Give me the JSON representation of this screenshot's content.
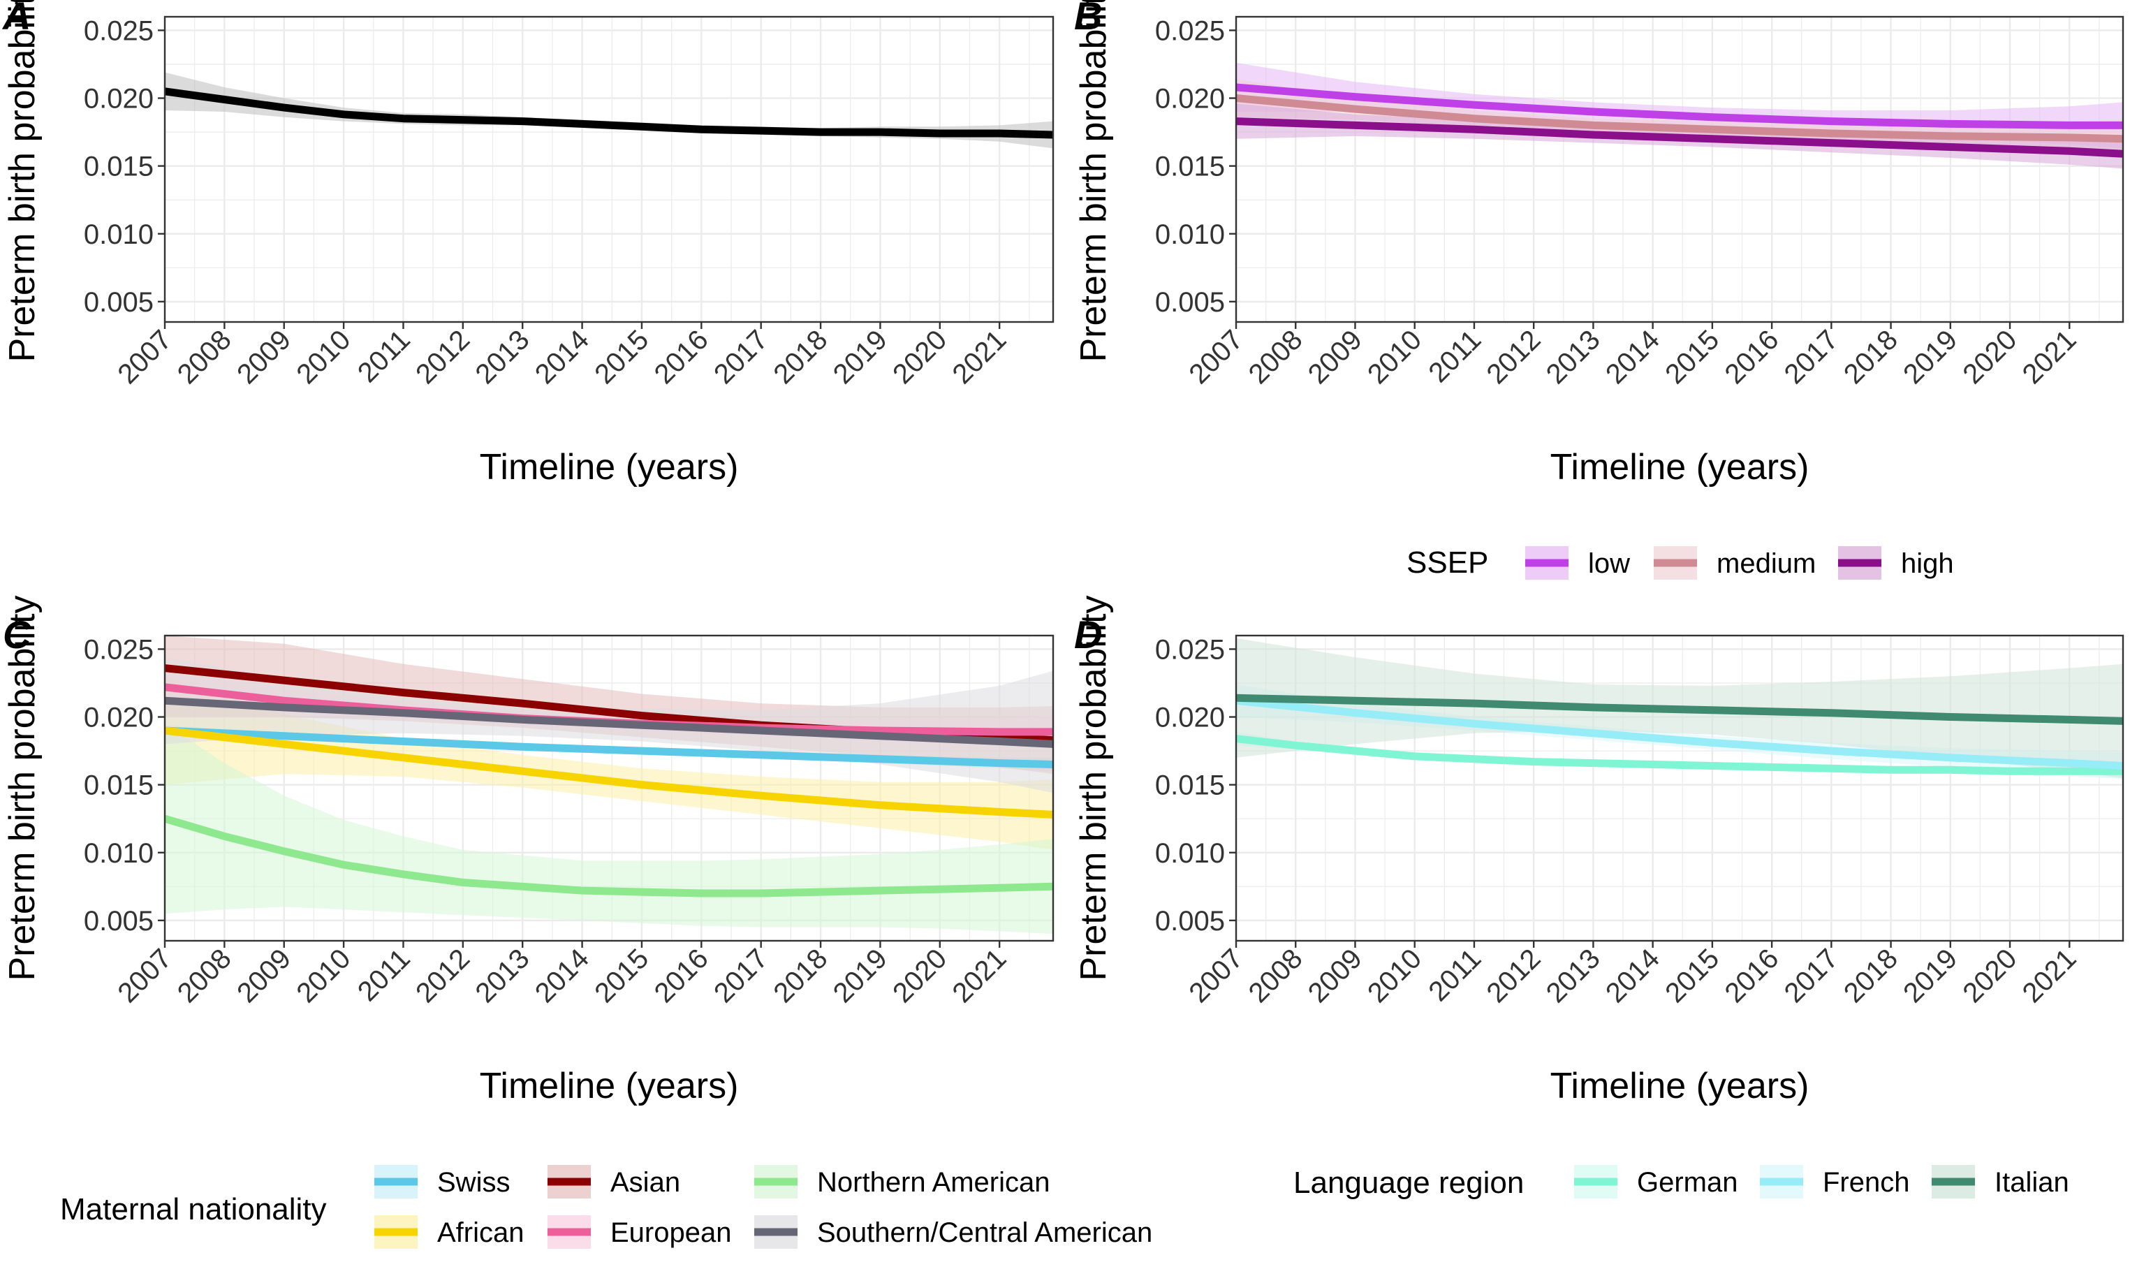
{
  "chart_data": [
    {
      "panel": "A",
      "type": "line",
      "ylabel": "Preterm birth probability",
      "xlabel": "Timeline (years)",
      "xlim": [
        2007,
        2021.9
      ],
      "ylim": [
        0.0035,
        0.026
      ],
      "x_ticks": [
        "2007",
        "2008",
        "2009",
        "2010",
        "2011",
        "2012",
        "2013",
        "2014",
        "2015",
        "2016",
        "2017",
        "2018",
        "2019",
        "2020",
        "2021"
      ],
      "y_ticks": [
        "0.005",
        "0.010",
        "0.015",
        "0.020",
        "0.025"
      ],
      "grid": true,
      "series": [
        {
          "color": "#000000",
          "band": "#bdbdbd",
          "x": [
            2007,
            2008,
            2009,
            2010,
            2011,
            2012,
            2013,
            2014,
            2015,
            2016,
            2017,
            2018,
            2019,
            2020,
            2021,
            2021.9
          ],
          "y": [
            0.0205,
            0.0199,
            0.0193,
            0.0188,
            0.0185,
            0.0184,
            0.0183,
            0.0181,
            0.0179,
            0.0177,
            0.0176,
            0.0175,
            0.0175,
            0.0174,
            0.0174,
            0.0173
          ],
          "lower": [
            0.0191,
            0.019,
            0.0186,
            0.0183,
            0.0181,
            0.018,
            0.018,
            0.0178,
            0.0176,
            0.0174,
            0.0173,
            0.0172,
            0.0171,
            0.017,
            0.0168,
            0.0163
          ],
          "upper": [
            0.0219,
            0.0208,
            0.02,
            0.0193,
            0.0189,
            0.0188,
            0.0186,
            0.0184,
            0.0182,
            0.018,
            0.0179,
            0.0178,
            0.0179,
            0.0179,
            0.018,
            0.0183
          ]
        }
      ]
    },
    {
      "panel": "B",
      "type": "line",
      "ylabel": "Preterm birth probability",
      "xlabel": "Timeline (years)",
      "xlim": [
        2007,
        2021.9
      ],
      "ylim": [
        0.0035,
        0.026
      ],
      "x_ticks": [
        "2007",
        "2008",
        "2009",
        "2010",
        "2011",
        "2012",
        "2013",
        "2014",
        "2015",
        "2016",
        "2017",
        "2018",
        "2019",
        "2020",
        "2021"
      ],
      "y_ticks": [
        "0.005",
        "0.010",
        "0.015",
        "0.020",
        "0.025"
      ],
      "grid": true,
      "legend": {
        "title": "SSEP",
        "placement": "bottom"
      },
      "series": [
        {
          "name": "low",
          "color": "#c040e8",
          "band": "#e6b8f5",
          "x": [
            2007,
            2009,
            2011,
            2013,
            2015,
            2017,
            2019,
            2021,
            2021.9
          ],
          "y": [
            0.0208,
            0.0201,
            0.0195,
            0.019,
            0.0186,
            0.0183,
            0.0181,
            0.018,
            0.018
          ],
          "lower": [
            0.019,
            0.019,
            0.0187,
            0.0183,
            0.0179,
            0.0175,
            0.0171,
            0.0166,
            0.0163
          ],
          "upper": [
            0.0226,
            0.0212,
            0.0203,
            0.0197,
            0.0193,
            0.0191,
            0.0191,
            0.0194,
            0.0197
          ]
        },
        {
          "name": "medium",
          "color": "#d08a94",
          "band": "#efd2d6",
          "x": [
            2007,
            2009,
            2011,
            2013,
            2015,
            2017,
            2019,
            2021,
            2021.9
          ],
          "y": [
            0.02,
            0.0192,
            0.0185,
            0.018,
            0.0177,
            0.0174,
            0.0172,
            0.0171,
            0.017
          ],
          "lower": [
            0.0186,
            0.0184,
            0.0179,
            0.0175,
            0.0171,
            0.0167,
            0.0163,
            0.0159,
            0.0156
          ],
          "upper": [
            0.0214,
            0.02,
            0.0191,
            0.0185,
            0.0183,
            0.0181,
            0.0181,
            0.0183,
            0.0184
          ]
        },
        {
          "name": "high",
          "color": "#8b0f8b",
          "band": "#d9a8d9",
          "x": [
            2007,
            2009,
            2011,
            2013,
            2015,
            2017,
            2019,
            2021,
            2021.9
          ],
          "y": [
            0.0183,
            0.018,
            0.0177,
            0.0173,
            0.017,
            0.0167,
            0.0164,
            0.0161,
            0.0159
          ],
          "lower": [
            0.017,
            0.0172,
            0.017,
            0.0167,
            0.0164,
            0.016,
            0.0156,
            0.0151,
            0.0148
          ],
          "upper": [
            0.0196,
            0.0188,
            0.0184,
            0.0179,
            0.0176,
            0.0174,
            0.0172,
            0.0171,
            0.017
          ]
        }
      ]
    },
    {
      "panel": "C",
      "type": "line",
      "ylabel": "Preterm birth probability",
      "xlabel": "Timeline (years)",
      "xlim": [
        2007,
        2021.9
      ],
      "ylim": [
        0.0035,
        0.026
      ],
      "x_ticks": [
        "2007",
        "2008",
        "2009",
        "2010",
        "2011",
        "2012",
        "2013",
        "2014",
        "2015",
        "2016",
        "2017",
        "2018",
        "2019",
        "2020",
        "2021"
      ],
      "y_ticks": [
        "0.005",
        "0.010",
        "0.015",
        "0.020",
        "0.025"
      ],
      "grid": true,
      "legend": {
        "title": "Maternal nationality",
        "placement": "bottom"
      },
      "series": [
        {
          "name": "Swiss",
          "color": "#5bc8e8",
          "band": "#c9eef8",
          "x": [
            2007,
            2009,
            2011,
            2013,
            2015,
            2017,
            2019,
            2021,
            2021.9
          ],
          "y": [
            0.019,
            0.0186,
            0.0182,
            0.0178,
            0.0175,
            0.0172,
            0.0169,
            0.0166,
            0.0165
          ],
          "lower": [
            0.0186,
            0.0183,
            0.018,
            0.0176,
            0.0173,
            0.017,
            0.0166,
            0.0162,
            0.016
          ],
          "upper": [
            0.0194,
            0.0189,
            0.0184,
            0.018,
            0.0177,
            0.0174,
            0.0172,
            0.017,
            0.017
          ]
        },
        {
          "name": "African",
          "color": "#f7d300",
          "band": "#fbefa6",
          "x": [
            2007,
            2009,
            2011,
            2013,
            2015,
            2017,
            2019,
            2021,
            2021.9
          ],
          "y": [
            0.019,
            0.018,
            0.017,
            0.016,
            0.015,
            0.0142,
            0.0135,
            0.013,
            0.0128
          ],
          "lower": [
            0.015,
            0.0158,
            0.0156,
            0.0148,
            0.0138,
            0.0128,
            0.0118,
            0.0108,
            0.0102
          ],
          "upper": [
            0.023,
            0.0202,
            0.0184,
            0.0172,
            0.0162,
            0.0156,
            0.0152,
            0.0152,
            0.0154
          ]
        },
        {
          "name": "Asian",
          "color": "#8b0000",
          "band": "#e6bcbc",
          "x": [
            2007,
            2009,
            2011,
            2013,
            2015,
            2017,
            2019,
            2021,
            2021.9
          ],
          "y": [
            0.0236,
            0.0227,
            0.0218,
            0.021,
            0.0201,
            0.0194,
            0.0189,
            0.0185,
            0.0183
          ],
          "lower": [
            0.02,
            0.02,
            0.0197,
            0.0192,
            0.0185,
            0.0178,
            0.0171,
            0.0163,
            0.0158
          ],
          "upper": [
            0.026,
            0.0254,
            0.0239,
            0.0228,
            0.0217,
            0.021,
            0.0207,
            0.0207,
            0.0208
          ]
        },
        {
          "name": "European",
          "color": "#ec5f9a",
          "band": "#f9cfe1",
          "x": [
            2007,
            2009,
            2011,
            2013,
            2015,
            2017,
            2019,
            2021,
            2021.9
          ],
          "y": [
            0.0222,
            0.0212,
            0.0205,
            0.0199,
            0.0195,
            0.0192,
            0.019,
            0.0189,
            0.0189
          ],
          "lower": [
            0.021,
            0.0204,
            0.0199,
            0.0194,
            0.019,
            0.0186,
            0.0182,
            0.0179,
            0.0177
          ],
          "upper": [
            0.0234,
            0.022,
            0.0211,
            0.0204,
            0.02,
            0.0198,
            0.0198,
            0.0199,
            0.0201
          ]
        },
        {
          "name": "Northern American",
          "color": "#8ee88e",
          "band": "#d5f5d5",
          "x": [
            2007,
            2008,
            2009,
            2010,
            2011,
            2012,
            2013,
            2014,
            2015,
            2016,
            2017,
            2018,
            2019,
            2020,
            2021,
            2021.9
          ],
          "y": [
            0.0125,
            0.0112,
            0.0101,
            0.0091,
            0.0084,
            0.0078,
            0.0075,
            0.0072,
            0.0071,
            0.007,
            0.007,
            0.0071,
            0.0072,
            0.0073,
            0.0074,
            0.0075
          ],
          "lower": [
            0.0055,
            0.0058,
            0.006,
            0.0058,
            0.0056,
            0.0054,
            0.0052,
            0.005,
            0.0048,
            0.0046,
            0.0045,
            0.0045,
            0.0045,
            0.0044,
            0.0042,
            0.004
          ],
          "upper": [
            0.0195,
            0.0166,
            0.0142,
            0.0124,
            0.0112,
            0.0102,
            0.0098,
            0.0094,
            0.0094,
            0.0094,
            0.0095,
            0.0097,
            0.0099,
            0.0102,
            0.0106,
            0.011
          ]
        },
        {
          "name": "Southern/Central American",
          "color": "#666677",
          "band": "#dddde0",
          "x": [
            2007,
            2009,
            2011,
            2013,
            2015,
            2017,
            2019,
            2021,
            2021.9
          ],
          "y": [
            0.0212,
            0.0207,
            0.0203,
            0.0198,
            0.0194,
            0.019,
            0.0186,
            0.0182,
            0.018
          ],
          "lower": [
            0.018,
            0.0186,
            0.0188,
            0.0186,
            0.0182,
            0.0175,
            0.0165,
            0.0152,
            0.0144
          ],
          "upper": [
            0.0244,
            0.0228,
            0.0218,
            0.021,
            0.0206,
            0.0205,
            0.021,
            0.0223,
            0.0234
          ]
        }
      ]
    },
    {
      "panel": "D",
      "type": "line",
      "ylabel": "Preterm birth probability",
      "xlabel": "Timeline (years)",
      "xlim": [
        2007,
        2021.9
      ],
      "ylim": [
        0.0035,
        0.026
      ],
      "x_ticks": [
        "2007",
        "2008",
        "2009",
        "2010",
        "2011",
        "2012",
        "2013",
        "2014",
        "2015",
        "2016",
        "2017",
        "2018",
        "2019",
        "2020",
        "2021"
      ],
      "y_ticks": [
        "0.005",
        "0.010",
        "0.015",
        "0.020",
        "0.025"
      ],
      "grid": true,
      "legend": {
        "title": "Language region",
        "placement": "bottom"
      },
      "series": [
        {
          "name": "German",
          "color": "#7ff5d4",
          "band": "#d4fbef",
          "x": [
            2007,
            2008,
            2009,
            2010,
            2011,
            2012,
            2013,
            2014,
            2015,
            2016,
            2017,
            2018,
            2019,
            2020,
            2021,
            2021.9
          ],
          "y": [
            0.0184,
            0.0179,
            0.0175,
            0.0171,
            0.0169,
            0.0167,
            0.0166,
            0.0165,
            0.0164,
            0.0163,
            0.0162,
            0.0161,
            0.0161,
            0.016,
            0.016,
            0.016
          ],
          "lower": [
            0.0179,
            0.0176,
            0.0172,
            0.0169,
            0.0167,
            0.0165,
            0.0164,
            0.0163,
            0.0162,
            0.0161,
            0.016,
            0.0159,
            0.0158,
            0.0157,
            0.0156,
            0.0155
          ],
          "upper": [
            0.0189,
            0.0182,
            0.0178,
            0.0173,
            0.0171,
            0.0169,
            0.0168,
            0.0167,
            0.0166,
            0.0165,
            0.0164,
            0.0163,
            0.0164,
            0.0163,
            0.0164,
            0.0165
          ]
        },
        {
          "name": "French",
          "color": "#96ecf7",
          "band": "#d8f6fb",
          "x": [
            2007,
            2009,
            2011,
            2013,
            2015,
            2017,
            2019,
            2021,
            2021.9
          ],
          "y": [
            0.0212,
            0.0203,
            0.0195,
            0.0188,
            0.0181,
            0.0175,
            0.017,
            0.0166,
            0.0164
          ],
          "lower": [
            0.02,
            0.0196,
            0.019,
            0.0183,
            0.0176,
            0.0169,
            0.0163,
            0.0157,
            0.0154
          ],
          "upper": [
            0.0224,
            0.021,
            0.02,
            0.0193,
            0.0186,
            0.0181,
            0.0177,
            0.0175,
            0.0174
          ]
        },
        {
          "name": "Italian",
          "color": "#3f8a70",
          "band": "#cfe3da",
          "x": [
            2007,
            2009,
            2011,
            2013,
            2015,
            2017,
            2019,
            2021,
            2021.9
          ],
          "y": [
            0.0214,
            0.0212,
            0.021,
            0.0207,
            0.0205,
            0.0203,
            0.02,
            0.0198,
            0.0197
          ],
          "lower": [
            0.017,
            0.018,
            0.0188,
            0.019,
            0.0187,
            0.018,
            0.017,
            0.016,
            0.0155
          ],
          "upper": [
            0.0258,
            0.0244,
            0.0232,
            0.0224,
            0.0223,
            0.0226,
            0.023,
            0.0236,
            0.0239
          ]
        }
      ]
    }
  ]
}
